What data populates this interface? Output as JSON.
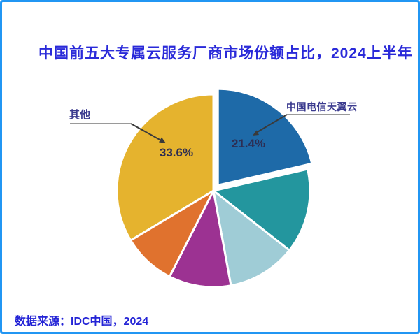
{
  "frame": {
    "border_color": "#2196f3",
    "background_color": "#ffffff"
  },
  "title": "中国前五大专属云服务厂商市场份额占比，2024上半年",
  "source": "数据来源：IDC中国，2024",
  "chart_data": {
    "type": "pie",
    "title": "中国前五大专属云服务厂商市场份额占比，2024上半年",
    "source_note": "数据来源：IDC中国，2024",
    "unit": "percent",
    "start_angle": "12-o-clock",
    "direction": "clockwise",
    "legend_position": "none",
    "slices": [
      {
        "label": "中国电信天翼云",
        "value": 21.4,
        "value_label": "21.4%",
        "labeled": true,
        "estimated": false,
        "color": "#1e6aa8",
        "exploded": true
      },
      {
        "label": "",
        "value": 14.2,
        "value_label": "",
        "labeled": false,
        "estimated": true,
        "color": "#23969e",
        "exploded": false
      },
      {
        "label": "",
        "value": 11.5,
        "value_label": "",
        "labeled": false,
        "estimated": true,
        "color": "#9fccd6",
        "exploded": false
      },
      {
        "label": "",
        "value": 10.4,
        "value_label": "",
        "labeled": false,
        "estimated": true,
        "color": "#9c3292",
        "exploded": false
      },
      {
        "label": "",
        "value": 8.9,
        "value_label": "",
        "labeled": false,
        "estimated": true,
        "color": "#e0722e",
        "exploded": false
      },
      {
        "label": "其他",
        "value": 33.6,
        "value_label": "33.6%",
        "labeled": true,
        "estimated": false,
        "color": "#e5b32e",
        "exploded": false
      }
    ],
    "annotations": {
      "telecom_callout": "中国电信天翼云",
      "telecom_value": "21.4%",
      "other_callout": "其他",
      "other_value": "33.6%"
    }
  },
  "colors": {
    "title_text": "#2a2ad9",
    "callout_text": "#3b3b8f",
    "percent_text": "#2d2d52",
    "source_text": "#2424d6",
    "leader_line_gray": "#9a9a9a",
    "leader_line_dark": "#3a3a3a",
    "slice_gap_stroke": "#ffffff"
  }
}
